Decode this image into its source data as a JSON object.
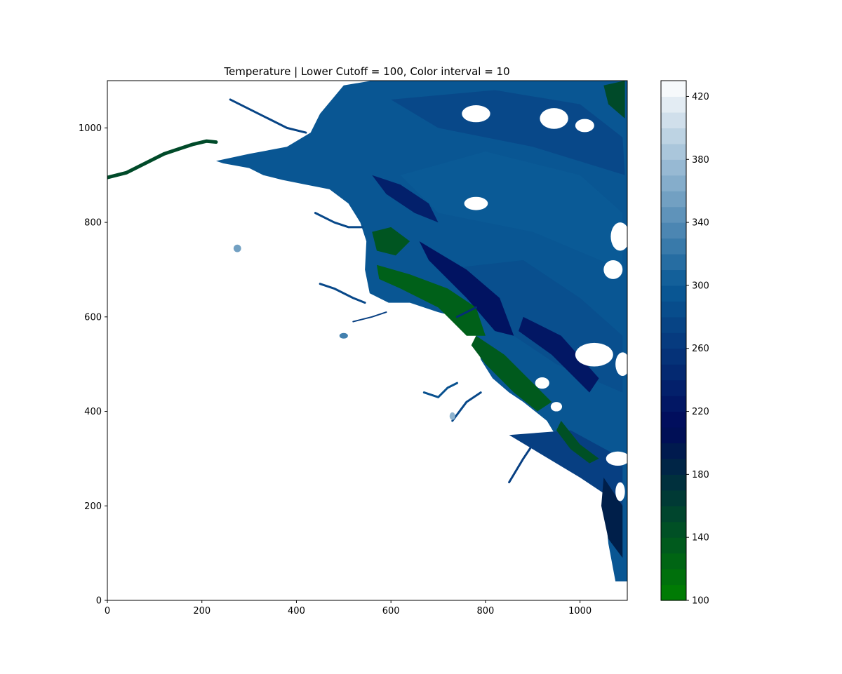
{
  "chart_data": {
    "type": "heatmap",
    "title": "Temperature | Lower Cutoff = 100, Color interval = 10",
    "xlabel": "",
    "ylabel": "",
    "xlim": [
      0,
      1100
    ],
    "ylim": [
      0,
      1100
    ],
    "x_ticks": [
      0,
      200,
      400,
      600,
      800,
      1000
    ],
    "y_ticks": [
      0,
      200,
      400,
      600,
      800,
      1000
    ],
    "colorbar": {
      "range": [
        100,
        430
      ],
      "interval": 10,
      "ticks": [
        100,
        140,
        180,
        220,
        260,
        300,
        340,
        380,
        420
      ],
      "colors": {
        "low": "#008000",
        "mid_dark": "#000a5a",
        "mid": "#0a5a96",
        "high": "#ffffff"
      }
    },
    "grid": false,
    "background_color": "#ffffff",
    "land_color": "#ffffff"
  }
}
